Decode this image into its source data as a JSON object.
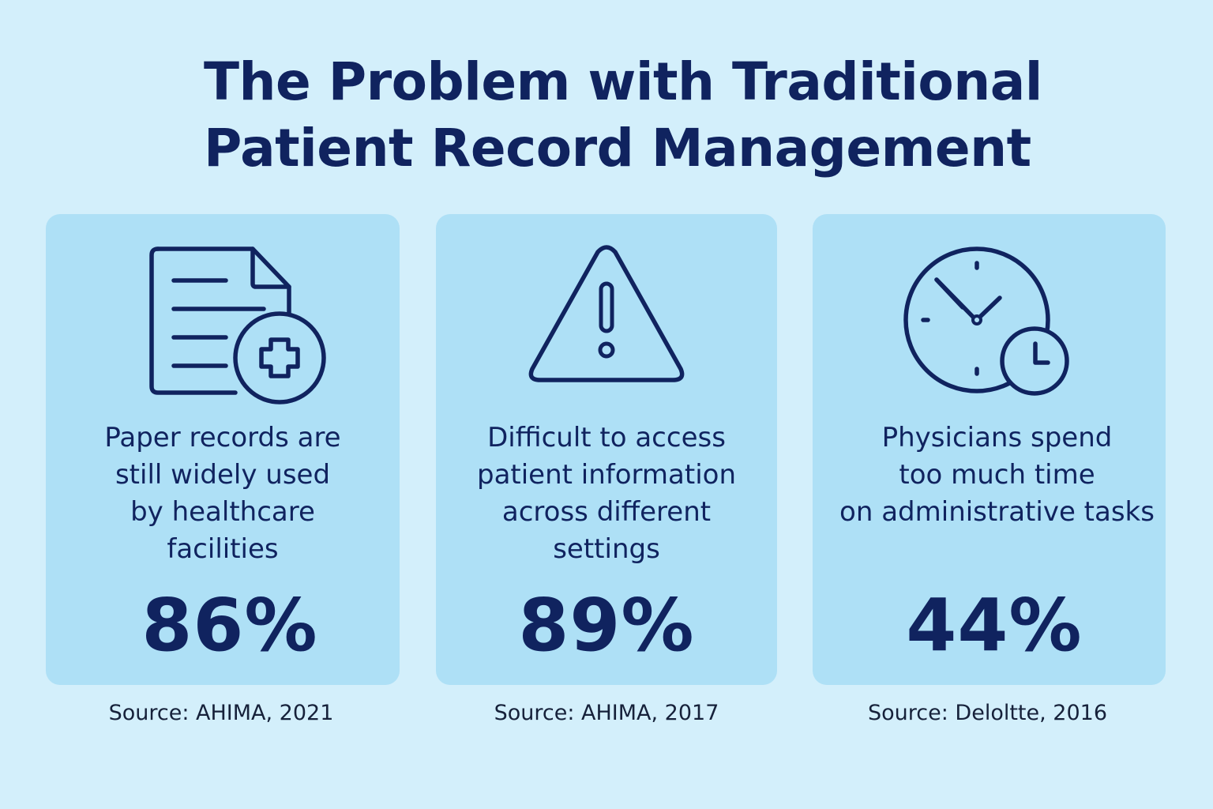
{
  "title": {
    "line1": "The Problem with Traditional",
    "line2": "Patient Record Management"
  },
  "cards": [
    {
      "icon": "document-medical-icon",
      "desc_lines": [
        "Paper records are",
        "still widely used",
        "by healthcare",
        "facilities"
      ],
      "stat": "86%",
      "source": "Source: AHIMA, 2021"
    },
    {
      "icon": "warning-icon",
      "desc_lines": [
        "Difficult to access",
        "patient information",
        "across different",
        "settings"
      ],
      "stat": "89%",
      "source": "Source: AHIMA, 2017"
    },
    {
      "icon": "clock-icon",
      "desc_lines": [
        "Physicians spend",
        "too much time",
        "on administrative tasks"
      ],
      "stat": "44%",
      "source": "Source: Deloltte, 2016"
    }
  ],
  "colors": {
    "background": "#d3effb",
    "card": "#aee0f6",
    "text": "#10235f"
  }
}
